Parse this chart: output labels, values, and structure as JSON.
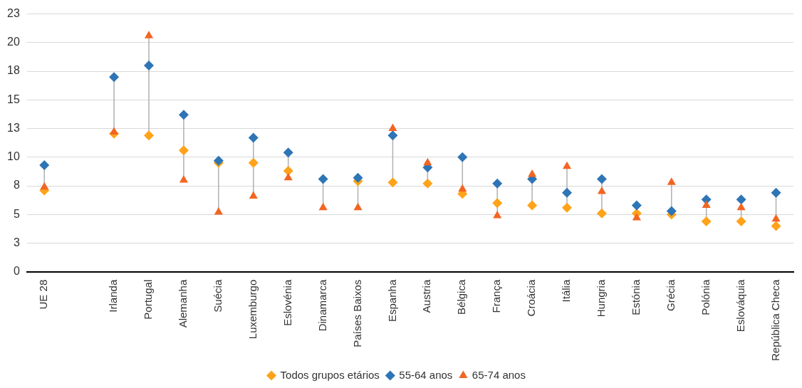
{
  "chart_data": {
    "type": "scatter",
    "categories": [
      "UE 28",
      null,
      "Irlanda",
      "Portugal",
      "Alemanha",
      "Suécia",
      "Luxemburgo",
      "Eslovénia",
      "Dinamarca",
      "Países Baixos",
      "Espanha",
      "Austria",
      "Bélgica",
      "França",
      "Croácia",
      "Itália",
      "Hungria",
      "Estónia",
      "Grécia",
      "Polónia",
      "Eslováquia",
      "República Checa"
    ],
    "series": [
      {
        "name": "Todos grupos etários",
        "color": "#ffa31a",
        "marker": "diamond",
        "values": [
          7.1,
          null,
          12.05,
          11.9,
          10.6,
          9.5,
          9.5,
          8.8,
          null,
          7.9,
          7.8,
          7.7,
          6.8,
          6.0,
          5.8,
          5.6,
          5.1,
          5.1,
          5.0,
          4.4,
          4.4,
          4.0
        ]
      },
      {
        "name": "55-64 anos",
        "color": "#2e75b6",
        "marker": "diamond",
        "values": [
          9.3,
          null,
          17.0,
          18.0,
          13.7,
          9.7,
          11.7,
          10.4,
          8.1,
          8.2,
          11.9,
          9.1,
          10.0,
          7.7,
          8.1,
          6.9,
          8.1,
          5.8,
          5.3,
          6.3,
          6.3,
          6.9
        ]
      },
      {
        "name": "65-74 anos",
        "color": "#f26522",
        "marker": "triangle",
        "values": [
          7.4,
          null,
          12.2,
          20.6,
          8.0,
          5.2,
          6.6,
          8.2,
          5.6,
          5.6,
          12.5,
          9.5,
          7.2,
          4.9,
          8.5,
          9.2,
          7.0,
          4.7,
          7.8,
          5.8,
          5.6,
          4.6
        ]
      }
    ],
    "ylim": [
      0,
      22.5
    ],
    "yticks": [
      0,
      {
        "value": 2.5,
        "label": "3"
      },
      5,
      {
        "value": 7.5,
        "label": "8"
      },
      10,
      {
        "value": 12.5,
        "label": "13"
      },
      15,
      {
        "value": 17.5,
        "label": "18"
      },
      20,
      {
        "value": 22.5,
        "label": "23"
      }
    ],
    "grid": "y",
    "legend": "bottom"
  }
}
